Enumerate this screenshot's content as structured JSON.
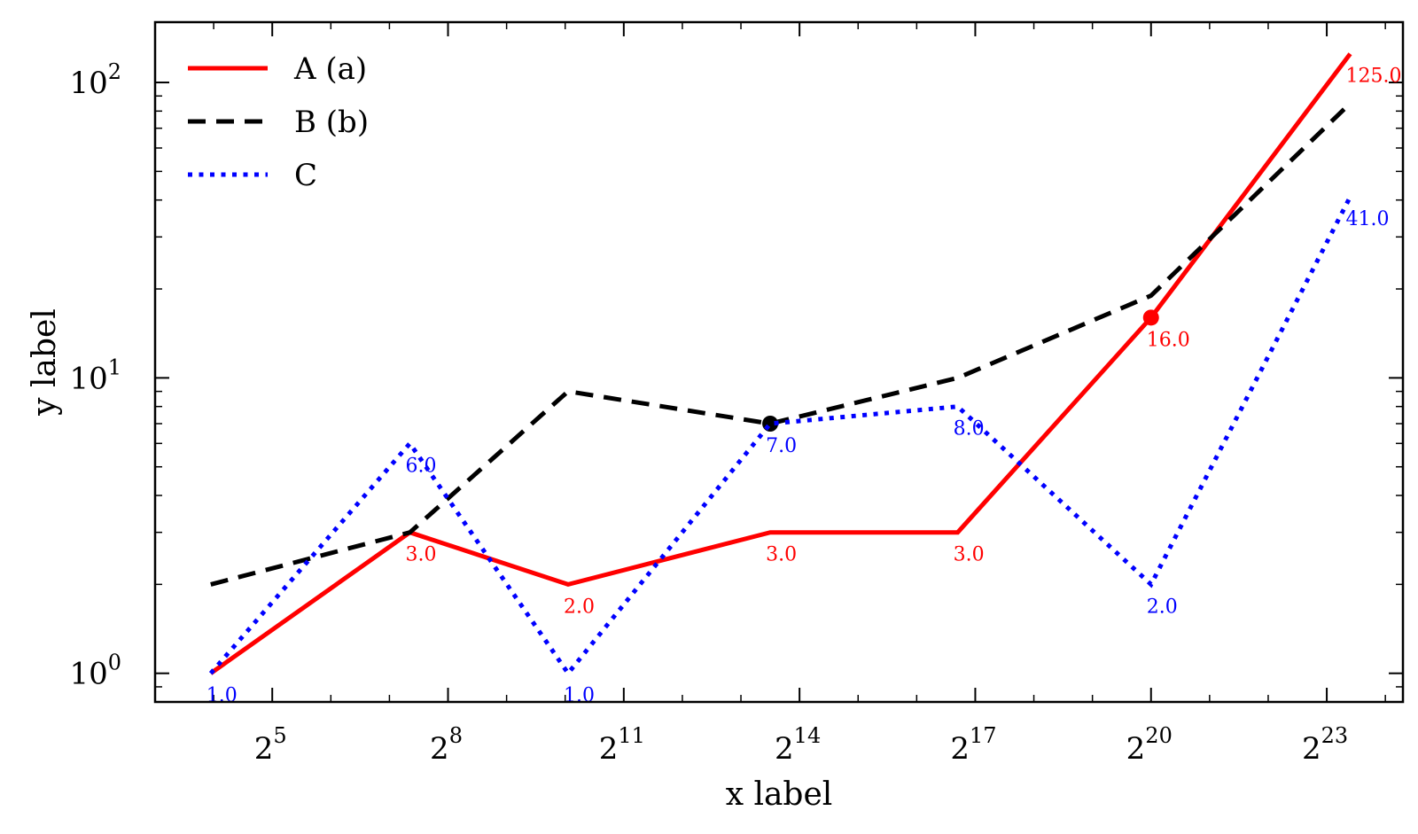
{
  "chart_data": {
    "type": "line",
    "xlabel": "x label",
    "ylabel": "y label",
    "x_scale": "log2",
    "y_scale": "log10",
    "xlim": [
      3,
      24.3
    ],
    "ylim": [
      0.8,
      160
    ],
    "x_ticks": [
      {
        "base": "2",
        "exp": "5",
        "value": 5
      },
      {
        "base": "2",
        "exp": "8",
        "value": 8
      },
      {
        "base": "2",
        "exp": "11",
        "value": 11
      },
      {
        "base": "2",
        "exp": "14",
        "value": 14
      },
      {
        "base": "2",
        "exp": "17",
        "value": 17
      },
      {
        "base": "2",
        "exp": "20",
        "value": 20
      },
      {
        "base": "2",
        "exp": "23",
        "value": 23
      }
    ],
    "y_ticks": [
      {
        "base": "10",
        "exp": "0",
        "value": 1
      },
      {
        "base": "10",
        "exp": "1",
        "value": 10
      },
      {
        "base": "10",
        "exp": "2",
        "value": 100
      }
    ],
    "legend_position": "top-left",
    "x": [
      3.95,
      7.35,
      10.05,
      13.5,
      16.7,
      20.0,
      23.4
    ],
    "series": [
      {
        "name": "A (a)",
        "color": "#ff0000",
        "style": "solid",
        "values": [
          1,
          3,
          2,
          3,
          3,
          16,
          125
        ],
        "labels": [
          null,
          "3.0",
          "2.0",
          "3.0",
          "3.0",
          "16.0",
          "125.0"
        ],
        "marker_index": 5
      },
      {
        "name": "B (b)",
        "color": "#000000",
        "style": "dashed",
        "values": [
          2,
          3,
          9,
          7,
          10,
          19,
          85
        ],
        "labels": [
          null,
          null,
          null,
          null,
          null,
          null,
          null
        ],
        "marker_index": 3
      },
      {
        "name": "C",
        "color": "#0000ff",
        "style": "dotted",
        "values": [
          1,
          6,
          1,
          7,
          8,
          2,
          41
        ],
        "labels": [
          "1.0",
          "6.0",
          "1.0",
          "7.0",
          "8.0",
          "2.0",
          "41.0"
        ],
        "marker_index": null
      }
    ]
  }
}
